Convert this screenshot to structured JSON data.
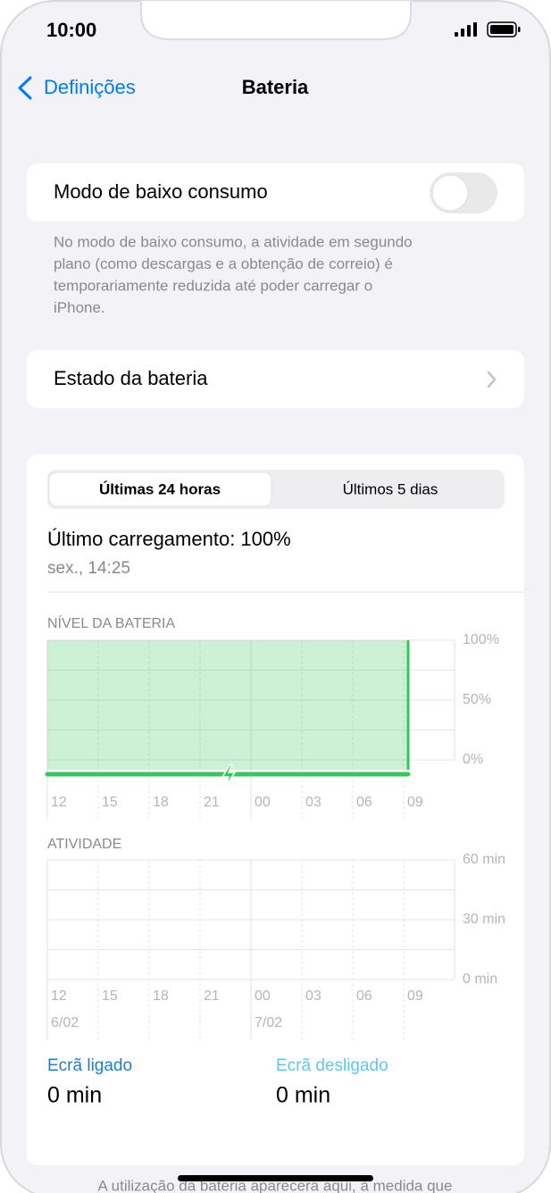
{
  "status_bar": {
    "time": "10:00"
  },
  "nav": {
    "back": "Definições",
    "title": "Bateria"
  },
  "low_power": {
    "label": "Modo de baixo consumo",
    "enabled": false,
    "footnote": [
      "No modo de baixo consumo, a atividade em segundo",
      "plano (como descargas e a obtenção de correio) é",
      "temporariamente reduzida até poder carregar o",
      "iPhone."
    ]
  },
  "battery_health": {
    "label": "Estado da bateria"
  },
  "segments": [
    "Últimas 24 horas",
    "Últimos 5 dias"
  ],
  "last_charge": {
    "title": "Último carregamento: 100%",
    "time": "sex., 14:25"
  },
  "battery_chart": {
    "type": "area",
    "title": "NÍVEL DA BATERIA",
    "color": "#34c759",
    "values": [
      100,
      100,
      100,
      100,
      100,
      100,
      100
    ],
    "ylim": [
      0,
      100
    ],
    "yticks": [
      {
        "value": 100,
        "label": "100%"
      },
      {
        "value": 50,
        "label": "50%"
      },
      {
        "value": 0,
        "label": "0%"
      }
    ],
    "xticks": [
      "12",
      "15",
      "18",
      "21",
      "00",
      "03",
      "06",
      "09"
    ]
  },
  "activity_chart": {
    "type": "bar",
    "title": "ATIVIDADE",
    "ylim": [
      0,
      60
    ],
    "yticks": [
      {
        "value": 60,
        "label": "60 min"
      },
      {
        "value": 30,
        "label": "30 min"
      },
      {
        "value": 0,
        "label": "0 min"
      }
    ],
    "xticks": [
      "12",
      "15",
      "18",
      "21",
      "00",
      "03",
      "06",
      "09"
    ],
    "dates": [
      "6/02",
      "7/02"
    ]
  },
  "screen": {
    "on_label": "Ecrã ligado",
    "on_value": "0 min",
    "off_label": "Ecrã desligado",
    "off_value": "0 min"
  },
  "footer": "A utilização da bateria aparecerá aqui, à medida que"
}
